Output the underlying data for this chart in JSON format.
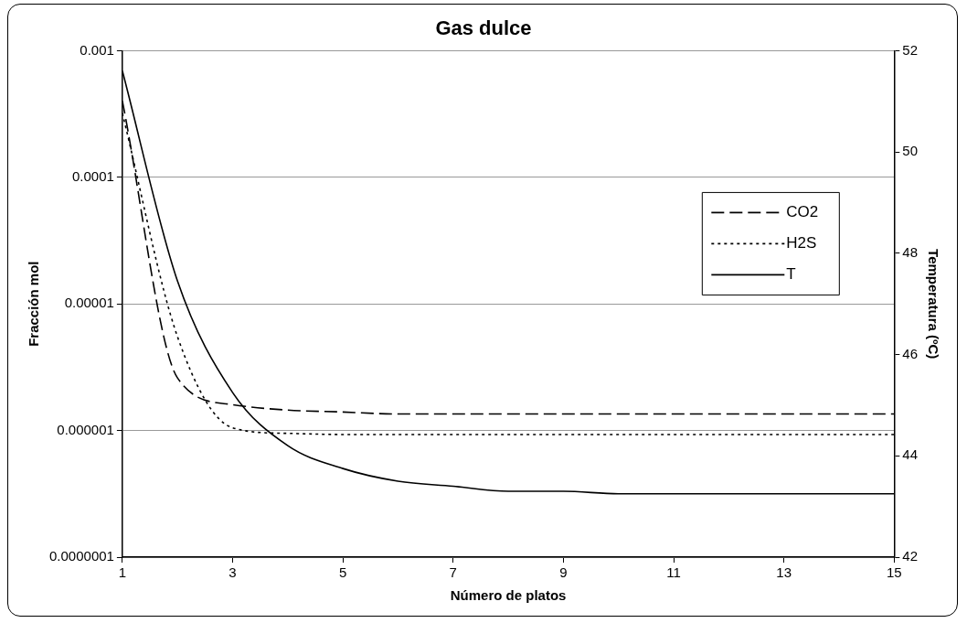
{
  "chart_data": {
    "type": "line",
    "title": "Gas dulce",
    "xlabel": "Número de platos",
    "ylabel": "Fracción mol",
    "y2label": "Temperatura (ºC)",
    "x": [
      1,
      2,
      3,
      4,
      5,
      6,
      7,
      8,
      9,
      10,
      11,
      12,
      13,
      14,
      15
    ],
    "series": [
      {
        "name": "CO2",
        "color": "#000000",
        "line_style": "dashed",
        "values": [
          0.0004,
          2.6e-06,
          1.6e-06,
          1.45e-06,
          1.4e-06,
          1.35e-06,
          1.35e-06,
          1.35e-06,
          1.35e-06,
          1.35e-06,
          1.35e-06,
          1.35e-06,
          1.35e-06,
          1.35e-06,
          1.35e-06
        ]
      },
      {
        "name": "H2S",
        "color": "#000000",
        "line_style": "dotted",
        "values": [
          0.00032,
          5.5e-06,
          1.05e-06,
          9.5e-07,
          9.3e-07,
          9.3e-07,
          9.3e-07,
          9.3e-07,
          9.3e-07,
          9.3e-07,
          9.3e-07,
          9.3e-07,
          9.3e-07,
          9.3e-07,
          9.3e-07
        ]
      },
      {
        "name": "T",
        "color": "#000000",
        "line_style": "solid",
        "axis": "y2",
        "values": [
          51.6,
          47.45,
          45.25,
          44.2,
          43.75,
          43.5,
          43.4,
          43.3,
          43.3,
          43.25,
          43.25,
          43.25,
          43.25,
          43.25,
          43.25
        ]
      }
    ],
    "log": "y",
    "xlim": [
      1,
      15
    ],
    "xticks": [
      1,
      3,
      5,
      7,
      9,
      11,
      13,
      15
    ],
    "ylim": [
      1e-07,
      0.001
    ],
    "yticks": [
      {
        "value": 1e-07,
        "label": "0.0000001"
      },
      {
        "value": 1e-06,
        "label": "0.000001"
      },
      {
        "value": 1e-05,
        "label": "0.00001"
      },
      {
        "value": 0.0001,
        "label": "0.0001"
      },
      {
        "value": 0.001,
        "label": "0.001"
      }
    ],
    "y2lim": [
      42,
      52
    ],
    "y2ticks": [
      42,
      44,
      46,
      48,
      50,
      52
    ],
    "grid": "y",
    "legend": "right",
    "marker": "none"
  }
}
